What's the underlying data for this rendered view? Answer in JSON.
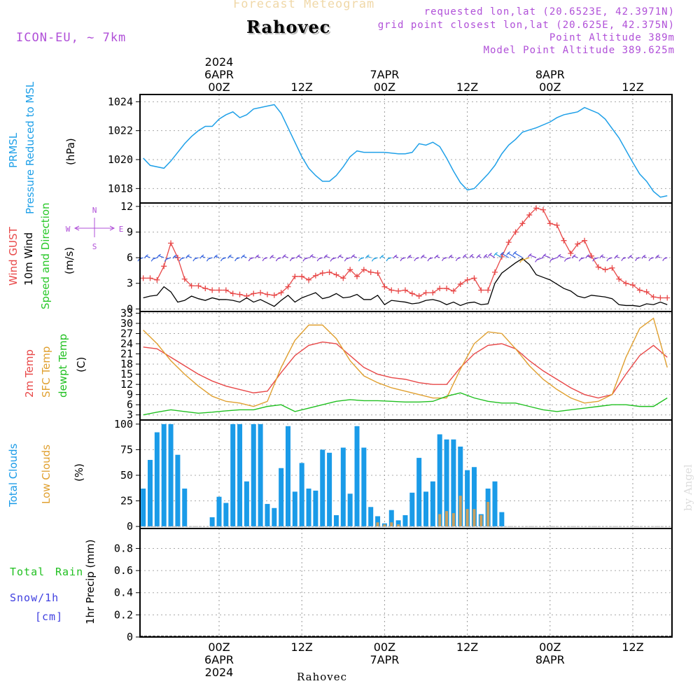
{
  "header": {
    "product": "Forecast Meteogram",
    "location": "Rahovec",
    "model": "ICON-EU, ~ 7km",
    "requested": "requested lon,lat (20.6523E, 42.3971N)",
    "gridpoint": "grid point closest lon,lat (20.625E, 42.375N)",
    "point_alt": "Point Altitude 389m",
    "model_alt": "Model Point Altitude 389.625m",
    "credit": "by Angel",
    "footer_location": "Rahovec"
  },
  "colors": {
    "pressure": "#1fa0e8",
    "gust": "#e84848",
    "wind10m": "#000000",
    "dir": "#28c828",
    "temp2m": "#e84848",
    "sfctemp": "#e0a030",
    "dewpt": "#20c020",
    "total_clouds": "#1a9be8",
    "low_clouds": "#c8a060",
    "rain": "#20c020",
    "snow": "#4040e0",
    "purple": "#b050d8"
  },
  "time_axis": {
    "top_labels": [
      {
        "hour": 0,
        "lines": [
          "2024",
          "6APR",
          "00Z"
        ]
      },
      {
        "hour": 12,
        "lines": [
          "12Z"
        ]
      },
      {
        "hour": 24,
        "lines": [
          "7APR",
          "00Z"
        ]
      },
      {
        "hour": 36,
        "lines": [
          "12Z"
        ]
      },
      {
        "hour": 48,
        "lines": [
          "8APR",
          "00Z"
        ]
      },
      {
        "hour": 60,
        "lines": [
          "12Z"
        ]
      }
    ],
    "bottom_labels": [
      {
        "hour": 0,
        "lines": [
          "00Z",
          "6APR",
          "2024"
        ]
      },
      {
        "hour": 12,
        "lines": [
          "12Z"
        ]
      },
      {
        "hour": 24,
        "lines": [
          "00Z",
          "7APR"
        ]
      },
      {
        "hour": 36,
        "lines": [
          "12Z"
        ]
      },
      {
        "hour": 48,
        "lines": [
          "00Z",
          "8APR"
        ]
      },
      {
        "hour": 60,
        "lines": [
          "12Z"
        ]
      }
    ]
  },
  "compass": {
    "n": "N",
    "s": "S",
    "w": "W",
    "e": "E"
  },
  "panel_labels": {
    "pressure": [
      "PRMSL",
      "Pressure Reduced to MSL",
      "(hPa)"
    ],
    "wind": [
      "Wind GUST",
      "10m Wind",
      "Speed and Direction",
      "(m/s)"
    ],
    "temp": [
      "2m Temp",
      "SFC Temp",
      "dewpt Temp",
      "(C)"
    ],
    "clouds": [
      "Total Clouds",
      "Low Clouds",
      "(%)"
    ],
    "precip": [
      "Total",
      "Rain",
      "Snow/1h",
      "[cm]",
      "1hr Precip (mm)"
    ]
  },
  "chart_data": [
    {
      "type": "line",
      "title": "PRMSL Pressure Reduced to MSL",
      "ylabel": "(hPa)",
      "ylim": [
        1017,
        1024.5
      ],
      "yticks": [
        1018,
        1020,
        1022,
        1024
      ],
      "x_hours": [
        -11,
        -10,
        -8,
        -7,
        -6,
        -5,
        -4,
        -3,
        -2,
        -1,
        0,
        1,
        2,
        3,
        4,
        5,
        6,
        7,
        8,
        9,
        10,
        12,
        13,
        14,
        15,
        16,
        17,
        18,
        19,
        20,
        21,
        22,
        24,
        26,
        27,
        28,
        29,
        30,
        31,
        32,
        33,
        34,
        35,
        36,
        37,
        38,
        39,
        40,
        41,
        42,
        43,
        44,
        46,
        48,
        49,
        50,
        51,
        52,
        53,
        54,
        55,
        56,
        58,
        60,
        61,
        62,
        63,
        64,
        65
      ],
      "series": [
        {
          "name": "PRMSL",
          "values": [
            1020.1,
            1019.6,
            1019.4,
            1019.9,
            1020.5,
            1021.1,
            1021.6,
            1022.0,
            1022.3,
            1022.3,
            1022.8,
            1023.1,
            1023.3,
            1022.9,
            1023.1,
            1023.5,
            1023.6,
            1023.7,
            1023.8,
            1023.2,
            1022.2,
            1020.2,
            1019.4,
            1018.9,
            1018.5,
            1018.5,
            1018.9,
            1019.5,
            1020.2,
            1020.6,
            1020.5,
            1020.5,
            1020.5,
            1020.4,
            1020.4,
            1020.5,
            1021.1,
            1021.0,
            1021.2,
            1020.9,
            1020.1,
            1019.2,
            1018.4,
            1017.9,
            1018.0,
            1018.5,
            1019.0,
            1019.6,
            1020.4,
            1021.0,
            1021.4,
            1021.9,
            1022.2,
            1022.6,
            1022.9,
            1023.1,
            1023.2,
            1023.3,
            1023.6,
            1023.4,
            1023.2,
            1022.8,
            1021.5,
            1019.8,
            1019.0,
            1018.5,
            1017.8,
            1017.4,
            1017.5
          ]
        }
      ]
    },
    {
      "type": "line",
      "title": "Wind GUST / 10m Wind Speed and Direction",
      "ylabel": "(m/s)",
      "ylim": [
        -0.3,
        12.4
      ],
      "yticks": [
        0,
        3,
        6,
        9,
        12
      ],
      "x_hours": [
        -11,
        -10,
        -9,
        -8,
        -7,
        -6,
        -5,
        -4,
        -3,
        -2,
        -1,
        0,
        1,
        2,
        3,
        4,
        5,
        6,
        7,
        8,
        9,
        10,
        11,
        12,
        13,
        14,
        15,
        16,
        17,
        18,
        19,
        20,
        21,
        22,
        23,
        24,
        25,
        26,
        27,
        28,
        29,
        30,
        31,
        32,
        33,
        34,
        35,
        36,
        37,
        38,
        39,
        40,
        41,
        42,
        43,
        44,
        45,
        46,
        47,
        48,
        49,
        50,
        51,
        52,
        53,
        54,
        55,
        56,
        57,
        58,
        59,
        60,
        61,
        62,
        63,
        64,
        65
      ],
      "series": [
        {
          "name": "Wind GUST",
          "values": [
            3.6,
            3.6,
            3.4,
            5.0,
            7.7,
            6.0,
            3.5,
            2.7,
            2.7,
            2.4,
            2.2,
            2.2,
            2.2,
            1.8,
            1.7,
            1.5,
            1.8,
            1.9,
            1.7,
            1.6,
            1.9,
            2.6,
            3.8,
            3.8,
            3.4,
            3.9,
            4.2,
            4.3,
            4.0,
            3.6,
            4.6,
            3.8,
            4.6,
            4.3,
            4.2,
            2.6,
            2.2,
            2.1,
            2.2,
            1.8,
            1.5,
            1.9,
            1.9,
            2.4,
            2.4,
            2.1,
            2.9,
            3.4,
            3.6,
            2.2,
            2.2,
            4.3,
            6.1,
            7.8,
            9.0,
            10.0,
            11.0,
            11.8,
            11.6,
            10.0,
            9.8,
            8.0,
            6.5,
            7.6,
            8.0,
            6.2,
            4.9,
            4.6,
            4.8,
            3.5,
            3.0,
            2.8,
            2.2,
            2.0,
            1.4,
            1.3,
            1.3
          ]
        },
        {
          "name": "10m Wind",
          "values": [
            1.3,
            1.5,
            1.6,
            2.6,
            2.0,
            0.8,
            1.0,
            1.5,
            1.2,
            1.0,
            1.3,
            1.1,
            1.1,
            1.0,
            0.8,
            1.3,
            0.8,
            1.1,
            0.7,
            0.3,
            1.0,
            1.6,
            0.8,
            1.3,
            1.6,
            1.9,
            1.2,
            1.4,
            1.8,
            1.3,
            1.4,
            1.7,
            1.1,
            1.1,
            1.6,
            0.5,
            1.0,
            0.9,
            0.8,
            0.6,
            0.7,
            1.0,
            1.1,
            0.9,
            0.5,
            0.8,
            0.4,
            0.7,
            0.8,
            0.5,
            0.6,
            3.0,
            4.2,
            4.8,
            5.4,
            5.9,
            5.2,
            4.0,
            3.7,
            3.4,
            2.9,
            2.4,
            2.1,
            1.5,
            1.3,
            1.6,
            1.5,
            1.4,
            1.2,
            0.5,
            0.4,
            0.4,
            0.3,
            0.6,
            0.5,
            0.8,
            0.5
          ]
        }
      ]
    },
    {
      "type": "line",
      "title": "2m Temp / SFC Temp / dewpt Temp",
      "ylabel": "(C)",
      "ylim": [
        1.5,
        33.5
      ],
      "yticks": [
        3,
        6,
        9,
        12,
        15,
        18,
        21,
        24,
        27,
        30,
        33
      ],
      "x_hours": [
        -11,
        -9,
        -7,
        -5,
        -3,
        -1,
        1,
        3,
        5,
        7,
        9,
        11,
        13,
        15,
        17,
        19,
        21,
        23,
        25,
        27,
        29,
        31,
        33,
        35,
        37,
        39,
        41,
        43,
        45,
        47,
        49,
        51,
        53,
        55,
        57,
        59,
        61,
        63,
        65
      ],
      "series": [
        {
          "name": "2m Temp",
          "values": [
            23,
            22.5,
            20,
            17.5,
            15,
            13,
            11.5,
            10.5,
            9.5,
            10,
            15.5,
            20.5,
            23.5,
            24.5,
            24,
            20.5,
            17,
            15,
            14,
            13.5,
            12.5,
            12,
            12,
            17,
            21,
            23.5,
            24,
            22.5,
            19,
            16,
            13.5,
            11,
            9,
            8,
            9,
            15,
            20.5,
            23.5,
            20
          ]
        },
        {
          "name": "SFC Temp",
          "values": [
            28,
            24,
            19,
            15,
            11.5,
            8.5,
            7,
            6.5,
            5.5,
            7,
            17,
            25,
            29.5,
            29.5,
            25.5,
            19,
            14.5,
            12.5,
            11,
            10,
            9,
            8,
            8,
            16.5,
            24,
            27.5,
            27,
            22.5,
            17.5,
            13.5,
            10.5,
            8,
            6.5,
            7,
            9,
            20,
            28.5,
            31.5,
            17
          ]
        },
        {
          "name": "dewpt Temp",
          "values": [
            3,
            3.8,
            4.5,
            4,
            3.5,
            3.8,
            4.2,
            4.5,
            4.5,
            5.5,
            6,
            4,
            5,
            6,
            7,
            7.5,
            7.2,
            7.2,
            7,
            6.8,
            6.8,
            7,
            8.5,
            9.5,
            8,
            7,
            6.5,
            6.5,
            5.5,
            4.5,
            4,
            4.5,
            5,
            5.5,
            6,
            6,
            5.5,
            5.5,
            8
          ]
        }
      ]
    },
    {
      "type": "bar",
      "title": "Total Clouds / Low Clouds",
      "ylabel": "(%)",
      "ylim": [
        -2,
        104
      ],
      "yticks": [
        0,
        25,
        50,
        75,
        100
      ],
      "x_hours": [
        -11,
        -10,
        -9,
        -8,
        -7,
        -6,
        -5,
        -4,
        -3,
        -2,
        -1,
        0,
        1,
        2,
        3,
        4,
        5,
        6,
        7,
        8,
        9,
        10,
        11,
        12,
        13,
        14,
        15,
        16,
        17,
        18,
        19,
        20,
        21,
        22,
        23,
        24,
        25,
        26,
        27,
        28,
        29,
        30,
        31,
        32,
        33,
        34,
        35,
        36,
        37,
        38,
        39,
        40,
        41,
        42,
        43,
        44,
        45,
        46,
        47,
        48,
        49,
        50,
        51,
        52,
        53,
        54,
        55,
        56,
        57,
        58,
        59,
        60,
        61,
        62,
        63,
        64,
        65
      ],
      "series": [
        {
          "name": "Total Clouds",
          "values": [
            37,
            65,
            92,
            100,
            100,
            70,
            37,
            0,
            0,
            0,
            9,
            29,
            23,
            100,
            100,
            44,
            100,
            100,
            22,
            18,
            57,
            98,
            34,
            62,
            37,
            35,
            75,
            72,
            11,
            77,
            32,
            98,
            77,
            19,
            10,
            3,
            16,
            6,
            11,
            33,
            67,
            34,
            44,
            90,
            85,
            85,
            78,
            55,
            58,
            12,
            37,
            44,
            14,
            0,
            0,
            0,
            0,
            0,
            0,
            0,
            0,
            0,
            0,
            0,
            0,
            0,
            0,
            0,
            0,
            0,
            0,
            0,
            0,
            0,
            0,
            0,
            0
          ]
        },
        {
          "name": "Low Clouds",
          "values": [
            0,
            0,
            0,
            0,
            0,
            0,
            0,
            0,
            0,
            0,
            0,
            0,
            0,
            0,
            0,
            0,
            0,
            0,
            0,
            0,
            0,
            0,
            0,
            0,
            0,
            0,
            0,
            0,
            0,
            0,
            0,
            0,
            0,
            0,
            4,
            2,
            4,
            2,
            0,
            0,
            0,
            0,
            0,
            12,
            15,
            13,
            30,
            17,
            17,
            11,
            24,
            0,
            0,
            0,
            0,
            0,
            0,
            0,
            0,
            0,
            0,
            0,
            0,
            0,
            0,
            0,
            0,
            0,
            0,
            0,
            0,
            0,
            0,
            0,
            0,
            0,
            0
          ]
        }
      ]
    },
    {
      "type": "bar",
      "title": "Total Rain / Snow 1hr Precip",
      "ylabel": "1hr Precip (mm)",
      "ylim": [
        0,
        0.98
      ],
      "yticks": [
        0,
        0.2,
        0.4,
        0.6,
        0.8
      ],
      "x_hours": [
        -11,
        65
      ],
      "series": [
        {
          "name": "Total Rain",
          "values": [
            0,
            0
          ]
        }
      ]
    }
  ]
}
